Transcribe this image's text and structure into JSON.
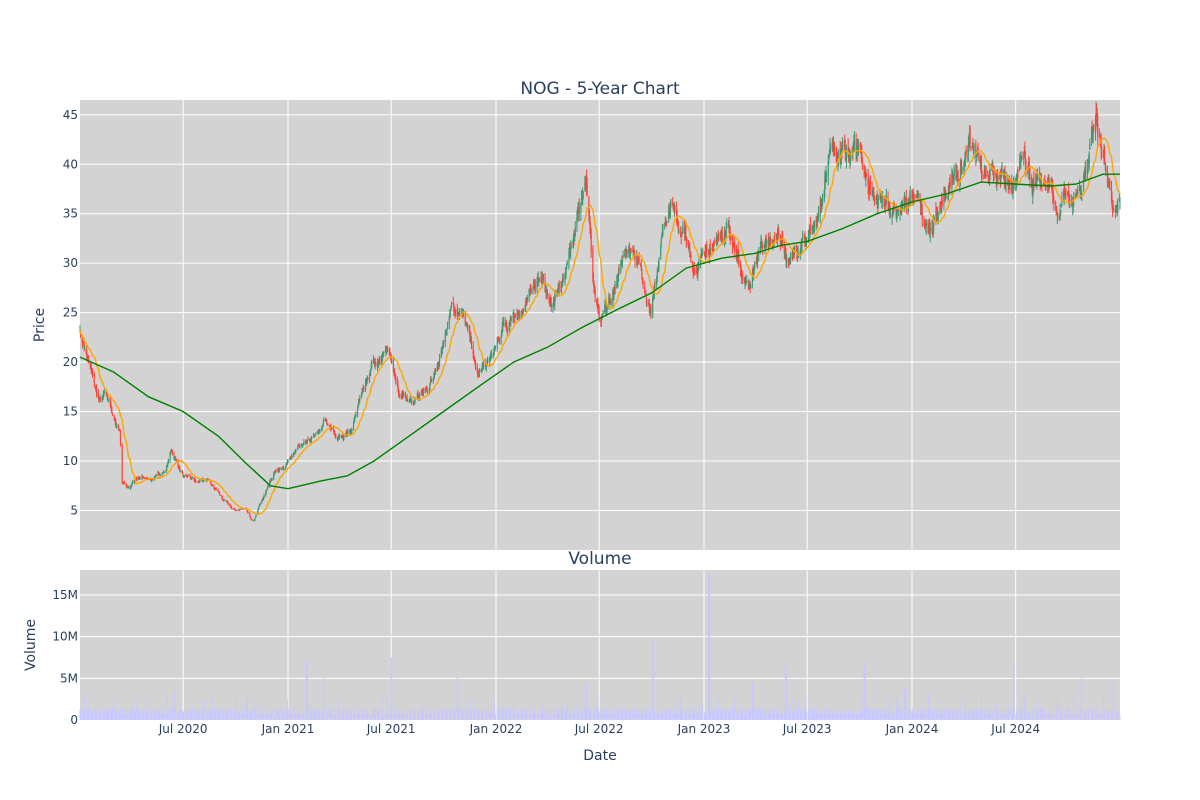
{
  "chart_data": [
    {
      "type": "candlestick",
      "title": "NOG - 5-Year Chart",
      "xlabel": "",
      "ylabel": "Price",
      "ylim": [
        1,
        46.5
      ],
      "xlim": [
        "2020-01-02",
        "2024-12-31"
      ],
      "yticks": [
        "5",
        "10",
        "15",
        "20",
        "25",
        "30",
        "35",
        "40",
        "45"
      ],
      "up_color": "#3d9970",
      "down_color": "#ff4136",
      "grid": true,
      "legend": "none",
      "anchor_closes": [
        [
          "2020-01-02",
          23.0
        ],
        [
          "2020-01-20",
          20.0
        ],
        [
          "2020-02-01",
          17.0
        ],
        [
          "2020-02-20",
          16.5
        ],
        [
          "2020-03-05",
          14.0
        ],
        [
          "2020-03-12",
          13.0
        ],
        [
          "2020-03-16",
          8.0
        ],
        [
          "2020-03-30",
          7.5
        ],
        [
          "2020-04-20",
          8.5
        ],
        [
          "2020-05-10",
          8.2
        ],
        [
          "2020-06-01",
          9.0
        ],
        [
          "2020-06-10",
          11.5
        ],
        [
          "2020-06-25",
          9.0
        ],
        [
          "2020-07-20",
          8.0
        ],
        [
          "2020-08-15",
          7.8
        ],
        [
          "2020-09-10",
          6.0
        ],
        [
          "2020-10-01",
          5.2
        ],
        [
          "2020-10-20",
          5.0
        ],
        [
          "2020-11-01",
          3.8
        ],
        [
          "2020-11-20",
          6.5
        ],
        [
          "2020-12-10",
          9.0
        ],
        [
          "2021-01-01",
          9.8
        ],
        [
          "2021-01-20",
          11.5
        ],
        [
          "2021-02-10",
          12.0
        ],
        [
          "2021-03-05",
          14.0
        ],
        [
          "2021-03-25",
          12.5
        ],
        [
          "2021-04-20",
          12.8
        ],
        [
          "2021-05-10",
          17.5
        ],
        [
          "2021-06-05",
          20.0
        ],
        [
          "2021-06-25",
          20.5
        ],
        [
          "2021-07-15",
          17.0
        ],
        [
          "2021-08-10",
          16.0
        ],
        [
          "2021-09-05",
          17.5
        ],
        [
          "2021-09-25",
          20.5
        ],
        [
          "2021-10-15",
          25.5
        ],
        [
          "2021-11-05",
          24.0
        ],
        [
          "2021-12-01",
          19.0
        ],
        [
          "2021-12-20",
          20.0
        ],
        [
          "2022-01-15",
          23.5
        ],
        [
          "2022-02-10",
          24.5
        ],
        [
          "2022-03-01",
          28.0
        ],
        [
          "2022-03-20",
          28.5
        ],
        [
          "2022-04-10",
          26.0
        ],
        [
          "2022-05-01",
          29.0
        ],
        [
          "2022-05-20",
          33.0
        ],
        [
          "2022-06-08",
          37.5
        ],
        [
          "2022-06-20",
          28.0
        ],
        [
          "2022-07-05",
          24.0
        ],
        [
          "2022-07-25",
          27.0
        ],
        [
          "2022-08-20",
          31.0
        ],
        [
          "2022-09-10",
          30.0
        ],
        [
          "2022-09-30",
          25.0
        ],
        [
          "2022-10-20",
          33.0
        ],
        [
          "2022-11-10",
          36.0
        ],
        [
          "2022-11-25",
          33.5
        ],
        [
          "2022-12-15",
          29.5
        ],
        [
          "2023-01-15",
          32.0
        ],
        [
          "2023-02-10",
          33.0
        ],
        [
          "2023-03-01",
          31.0
        ],
        [
          "2023-03-20",
          27.0
        ],
        [
          "2023-04-10",
          32.0
        ],
        [
          "2023-05-05",
          33.0
        ],
        [
          "2023-05-25",
          30.5
        ],
        [
          "2023-06-20",
          32.0
        ],
        [
          "2023-07-20",
          35.0
        ],
        [
          "2023-08-10",
          41.0
        ],
        [
          "2023-08-30",
          40.5
        ],
        [
          "2023-09-20",
          42.0
        ],
        [
          "2023-10-10",
          39.0
        ],
        [
          "2023-10-30",
          37.0
        ],
        [
          "2023-11-20",
          36.0
        ],
        [
          "2023-12-10",
          35.0
        ],
        [
          "2024-01-01",
          37.0
        ],
        [
          "2024-01-25",
          33.0
        ],
        [
          "2024-02-15",
          34.5
        ],
        [
          "2024-03-05",
          38.0
        ],
        [
          "2024-03-25",
          40.0
        ],
        [
          "2024-04-10",
          42.5
        ],
        [
          "2024-04-25",
          41.0
        ],
        [
          "2024-05-15",
          39.0
        ],
        [
          "2024-06-05",
          38.5
        ],
        [
          "2024-06-25",
          38.0
        ],
        [
          "2024-07-15",
          41.0
        ],
        [
          "2024-07-28",
          38.5
        ],
        [
          "2024-08-15",
          38.0
        ],
        [
          "2024-08-30",
          37.0
        ],
        [
          "2024-09-12",
          34.0
        ],
        [
          "2024-09-25",
          36.0
        ],
        [
          "2024-10-20",
          37.5
        ],
        [
          "2024-11-05",
          41.0
        ],
        [
          "2024-11-20",
          43.5
        ],
        [
          "2024-12-05",
          40.0
        ],
        [
          "2024-12-18",
          36.0
        ],
        [
          "2024-12-31",
          36.5
        ]
      ],
      "ma_short_color": "#ffa500",
      "ma_long_color": "#008000",
      "ma_long_points": [
        [
          "2020-01-02",
          20.5
        ],
        [
          "2020-03-01",
          19.0
        ],
        [
          "2020-05-01",
          16.5
        ],
        [
          "2020-07-01",
          15.0
        ],
        [
          "2020-09-01",
          12.5
        ],
        [
          "2020-10-15",
          10.0
        ],
        [
          "2020-12-01",
          7.5
        ],
        [
          "2021-01-01",
          7.2
        ],
        [
          "2021-03-01",
          8.0
        ],
        [
          "2021-04-15",
          8.5
        ],
        [
          "2021-06-01",
          10.0
        ],
        [
          "2021-08-01",
          12.5
        ],
        [
          "2021-10-01",
          15.0
        ],
        [
          "2021-12-01",
          17.5
        ],
        [
          "2022-02-01",
          20.0
        ],
        [
          "2022-04-01",
          21.5
        ],
        [
          "2022-06-01",
          23.5
        ],
        [
          "2022-08-01",
          25.3
        ],
        [
          "2022-10-01",
          27.0
        ],
        [
          "2022-12-01",
          29.5
        ],
        [
          "2023-02-01",
          30.5
        ],
        [
          "2023-04-01",
          31.0
        ],
        [
          "2023-05-15",
          31.8
        ],
        [
          "2023-07-01",
          32.2
        ],
        [
          "2023-09-01",
          33.5
        ],
        [
          "2023-11-01",
          35.0
        ],
        [
          "2024-01-01",
          36.2
        ],
        [
          "2024-03-01",
          37.0
        ],
        [
          "2024-05-01",
          38.2
        ],
        [
          "2024-07-01",
          38.0
        ],
        [
          "2024-09-01",
          37.8
        ],
        [
          "2024-10-15",
          38.0
        ],
        [
          "2024-12-01",
          39.0
        ],
        [
          "2024-12-31",
          39.0
        ]
      ]
    },
    {
      "type": "bar",
      "title": "Volume",
      "xlabel": "Date",
      "ylabel": "Volume",
      "ylim": [
        0,
        18000000
      ],
      "yticks": [
        "0",
        "5M",
        "10M",
        "15M"
      ],
      "xticks": [
        "Jul 2020",
        "Jan 2021",
        "Jul 2021",
        "Jan 2022",
        "Jul 2022",
        "Jan 2023",
        "Jul 2023",
        "Jan 2024",
        "Jul 2024"
      ],
      "bar_color": "#c8c8ff",
      "base_volume": 1200000,
      "spikes": [
        [
          "2020-06-15",
          3500000
        ],
        [
          "2020-11-15",
          2800000
        ],
        [
          "2021-02-03",
          7200000
        ],
        [
          "2021-03-05",
          5000000
        ],
        [
          "2021-07-02",
          7500000
        ],
        [
          "2021-10-25",
          5200000
        ],
        [
          "2022-06-08",
          4500000
        ],
        [
          "2022-10-03",
          9600000
        ],
        [
          "2022-11-20",
          2800000
        ],
        [
          "2023-01-10",
          17500000
        ],
        [
          "2023-03-28",
          4500000
        ],
        [
          "2023-05-25",
          6500000
        ],
        [
          "2023-10-10",
          6700000
        ],
        [
          "2023-12-20",
          3800000
        ],
        [
          "2024-06-28",
          6800000
        ],
        [
          "2024-08-10",
          3000000
        ],
        [
          "2024-10-25",
          5000000
        ],
        [
          "2024-12-20",
          4800000
        ]
      ]
    }
  ]
}
